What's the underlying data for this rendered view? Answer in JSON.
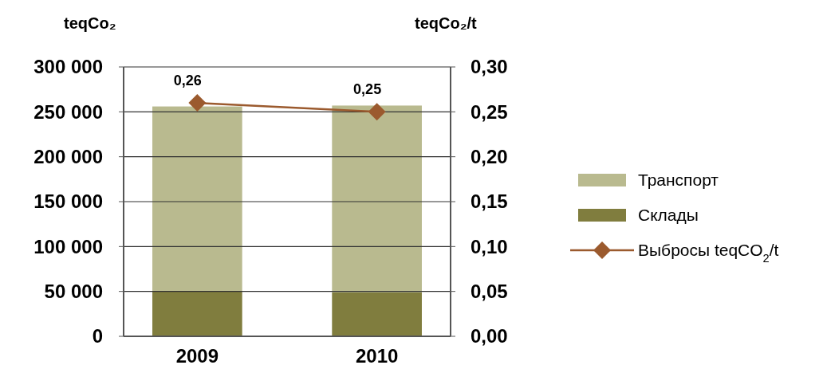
{
  "chart_data": {
    "type": "bar",
    "stacked": true,
    "categories": [
      "2009",
      "2010"
    ],
    "ylabel": "teqCo₂",
    "y2label": "teqCo₂/t",
    "series": [
      {
        "name": "Склады",
        "color": "#807d3e",
        "values": [
          50000,
          49000
        ]
      },
      {
        "name": "Транспорт",
        "color": "#b9ba8f",
        "values": [
          206000,
          208000
        ]
      },
      {
        "name": "Выбросы teqCO$_{2}$/t",
        "type": "line",
        "axis": "y2",
        "color": "#9b5a2e",
        "marker": "diamond",
        "values": [
          0.26,
          0.25
        ],
        "value_labels": [
          "0,26",
          "0,25"
        ]
      }
    ],
    "ylim": [
      0,
      300000
    ],
    "yticks": [
      0,
      {
        "value": 50000,
        "label": "50 000"
      },
      {
        "value": 100000,
        "label": "100 000"
      },
      {
        "value": 150000,
        "label": "150 000"
      },
      {
        "value": 200000,
        "label": "200 000"
      },
      {
        "value": 250000,
        "label": "250 000"
      },
      {
        "value": 300000,
        "label": "300 000"
      }
    ],
    "y2lim": [
      0,
      0.3
    ],
    "y2ticks": [
      {
        "value": 0,
        "label": "0,00"
      },
      {
        "value": 0.05,
        "label": "0,05"
      },
      {
        "value": 0.1,
        "label": "0,10"
      },
      {
        "value": 0.15,
        "label": "0,15"
      },
      {
        "value": 0.2,
        "label": "0,20"
      },
      {
        "value": 0.25,
        "label": "0,25"
      },
      {
        "value": 0.3,
        "label": "0,30"
      }
    ],
    "grid": "y",
    "legend": "right"
  }
}
